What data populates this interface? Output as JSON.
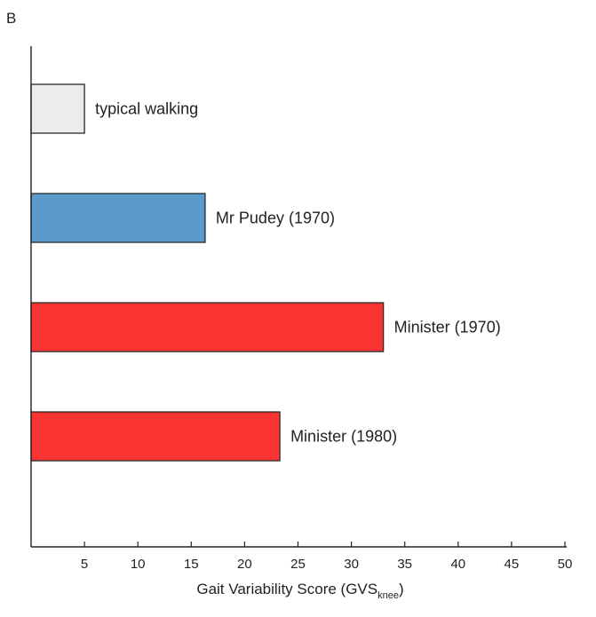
{
  "panel_label": "B",
  "chart_data": {
    "type": "bar",
    "orientation": "horizontal",
    "categories": [
      "typical walking",
      "Mr Pudey (1970)",
      "Minister (1970)",
      "Minister (1980)"
    ],
    "values": [
      5,
      16.3,
      33,
      23.3
    ],
    "colors": [
      "#eeeceb",
      "#5a9bcc",
      "#fa3333",
      "#fa3333"
    ],
    "bar_edge_color": "#2a2a2a",
    "xlabel": {
      "main": "Gait Variability Score (GVS",
      "subscript": "knee",
      "close": ")"
    },
    "xlim": [
      0,
      50
    ],
    "xticks": [
      5,
      10,
      15,
      20,
      25,
      30,
      35,
      40,
      45,
      50
    ],
    "legend": "none",
    "grid": false
  }
}
